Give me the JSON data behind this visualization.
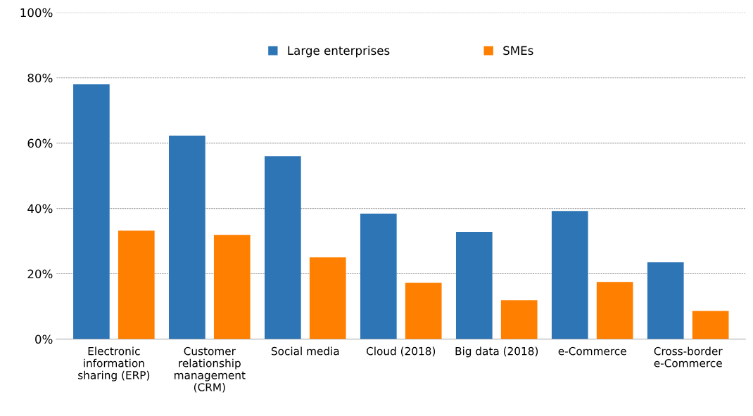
{
  "chart_data": {
    "type": "bar",
    "categories": [
      "Electronic\ninformation\nsharing (ERP)",
      "Customer\nrelationship\nmanagement\n(CRM)",
      "Social media",
      "Cloud (2018)",
      "Big data (2018)",
      "e-Commerce",
      "Cross-border\ne-Commerce"
    ],
    "series": [
      {
        "name": "Large enterprises",
        "color": "#2e75b6",
        "values": [
          78.0,
          62.3,
          56.0,
          38.4,
          32.8,
          39.2,
          23.5
        ]
      },
      {
        "name": "SMEs",
        "color": "#ff7f00",
        "values": [
          33.2,
          31.9,
          25.0,
          17.2,
          11.9,
          17.5,
          8.6
        ]
      }
    ],
    "ylim": [
      0,
      100
    ],
    "yticks": [
      {
        "value": 0,
        "label": "0%"
      },
      {
        "value": 20,
        "label": "20%"
      },
      {
        "value": 40,
        "label": "40%"
      },
      {
        "value": 60,
        "label": "60%"
      },
      {
        "value": 80,
        "label": "80%"
      },
      {
        "value": 100,
        "label": "100%"
      }
    ],
    "grid": "y",
    "legend": "top"
  }
}
